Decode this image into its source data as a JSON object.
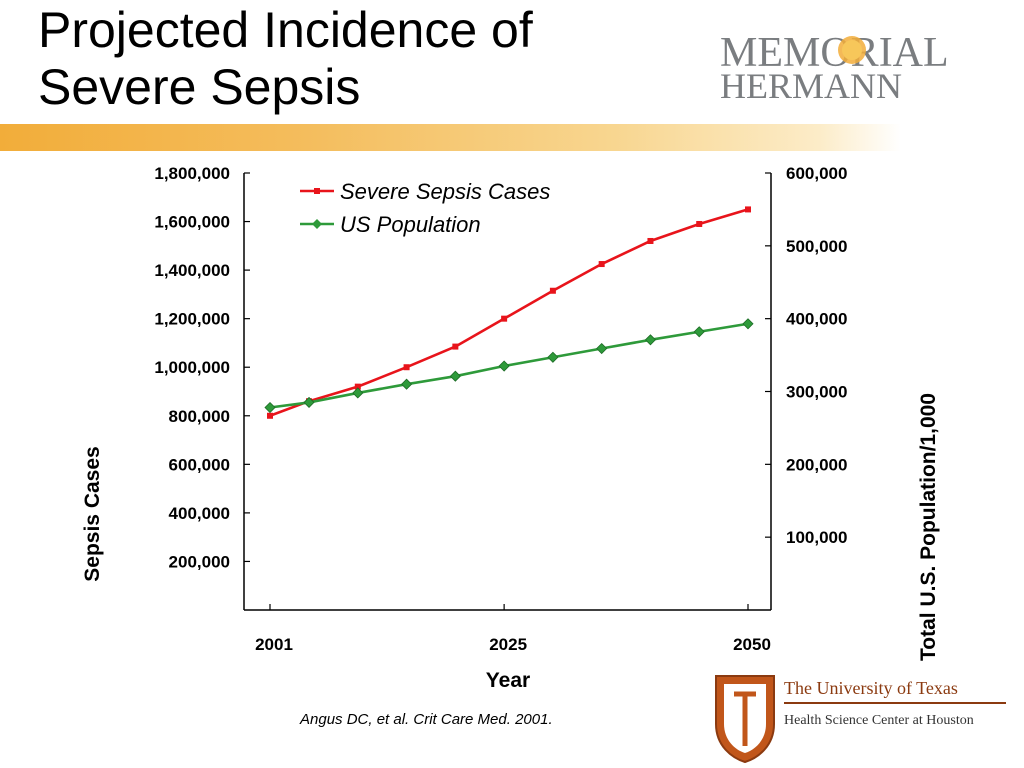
{
  "slide": {
    "title_line1": "Projected Incidence of",
    "title_line2": "Severe Sepsis",
    "citation": "Angus DC, et al. Crit Care Med. 2001."
  },
  "logos": {
    "memorial_hermann_line1": "MEMORIAL",
    "memorial_hermann_line2": "HERMANN",
    "ut_line1": "The University of Texas",
    "ut_line2": "Health Science Center at Houston"
  },
  "colors": {
    "sepsis_series": "#e8141b",
    "population_series": "#2e9a3a",
    "band_accent": "#f2ad3a"
  },
  "chart_data": {
    "type": "line",
    "title": "",
    "xlabel": "Year",
    "ylabel_left": "Sepsis Cases",
    "ylabel_right": "Total U.S. Population/1,000",
    "x_ticks": [
      "2001",
      "2025",
      "2050"
    ],
    "y_left_ticks": [
      "200,000",
      "400,000",
      "600,000",
      "800,000",
      "1,000,000",
      "1,200,000",
      "1,400,000",
      "1,600,000",
      "1,800,000"
    ],
    "y_right_ticks": [
      "100,000",
      "200,000",
      "300,000",
      "400,000",
      "500,000",
      "600,000"
    ],
    "ylim_left": [
      0,
      1800000
    ],
    "ylim_right": [
      0,
      600000
    ],
    "xlim": [
      2001,
      2050
    ],
    "legend_position": "top-left",
    "grid": false,
    "series": [
      {
        "name": "Severe Sepsis Cases",
        "axis": "left",
        "marker": "square",
        "x": [
          2001,
          2005,
          2010,
          2015,
          2020,
          2025,
          2030,
          2035,
          2040,
          2045,
          2050
        ],
        "values": [
          800000,
          860000,
          920000,
          1000000,
          1085000,
          1200000,
          1315000,
          1425000,
          1520000,
          1590000,
          1650000
        ]
      },
      {
        "name": "US Population",
        "axis": "right",
        "marker": "diamond",
        "x": [
          2001,
          2005,
          2010,
          2015,
          2020,
          2025,
          2030,
          2035,
          2040,
          2045,
          2050
        ],
        "values": [
          278000,
          285000,
          298000,
          310000,
          321000,
          335000,
          347000,
          359000,
          371000,
          382000,
          393000
        ]
      }
    ]
  }
}
